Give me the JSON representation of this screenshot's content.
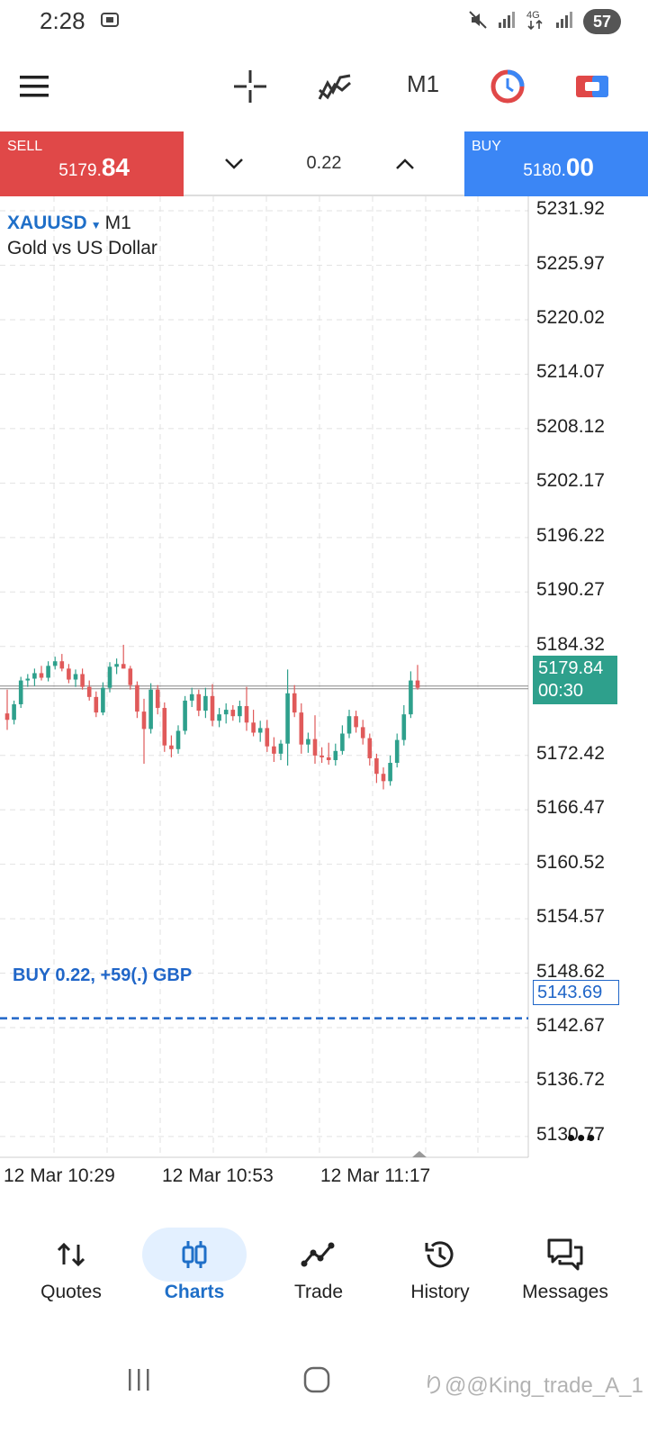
{
  "status_bar": {
    "time": "2:28",
    "battery": "57"
  },
  "toolbar": {
    "menu_icon": "hamburger-icon",
    "crosshair_icon": "crosshair-icon",
    "indicators_icon": "indicators-icon",
    "timeframe": "M1",
    "clock_icon": "one-click-trading-icon",
    "toggle_icon": "trade-toggle-icon"
  },
  "trade": {
    "sell_label": "SELL",
    "sell_price_main": "5179.",
    "sell_price_big": "84",
    "buy_label": "BUY",
    "buy_price_main": "5180.",
    "buy_price_big": "00",
    "volume": "0.22",
    "sell_color": "#e04848",
    "buy_color": "#3b86f5"
  },
  "chart": {
    "symbol": "XAUUSD",
    "timeframe": "M1",
    "description": "Gold vs US Dollar",
    "current_price": "5179.84",
    "countdown": "00:30",
    "position_text": "BUY 0.22,   +59(.) GBP",
    "position_price": "5143.69",
    "bull_color": "#2ea08c",
    "bear_color": "#e05a5a"
  },
  "chart_data": {
    "type": "candlestick",
    "y_ticks": [
      "5231.92",
      "5225.97",
      "5220.02",
      "5214.07",
      "5208.12",
      "5202.17",
      "5196.22",
      "5190.27",
      "5184.32",
      "5172.42",
      "5166.47",
      "5160.52",
      "5154.57",
      "5148.62",
      "5142.67",
      "5136.72",
      "5130.77"
    ],
    "x_ticks": [
      "12 Mar 10:29",
      "12 Mar 10:53",
      "12 Mar 11:17"
    ],
    "ylim": [
      5128.5,
      5233.5
    ],
    "bid_line": 5179.84,
    "position_line": 5143.69,
    "candles": [
      [
        5177.0,
        5179.6,
        5175.2,
        5176.3
      ],
      [
        5176.3,
        5178.4,
        5175.8,
        5178.0
      ],
      [
        5178.0,
        5181.0,
        5177.6,
        5180.6
      ],
      [
        5180.6,
        5181.3,
        5179.9,
        5180.8
      ],
      [
        5180.8,
        5181.9,
        5180.0,
        5181.4
      ],
      [
        5181.4,
        5182.2,
        5180.6,
        5180.9
      ],
      [
        5180.9,
        5182.7,
        5180.5,
        5182.2
      ],
      [
        5182.2,
        5183.2,
        5181.8,
        5182.7
      ],
      [
        5182.7,
        5183.5,
        5181.6,
        5181.9
      ],
      [
        5181.9,
        5182.4,
        5180.3,
        5180.7
      ],
      [
        5180.7,
        5181.8,
        5179.9,
        5181.3
      ],
      [
        5181.3,
        5181.9,
        5179.6,
        5179.9
      ],
      [
        5179.9,
        5180.6,
        5178.4,
        5178.8
      ],
      [
        5178.8,
        5179.4,
        5176.6,
        5177.1
      ],
      [
        5177.1,
        5180.4,
        5176.8,
        5179.8
      ],
      [
        5179.8,
        5182.6,
        5179.3,
        5182.1
      ],
      [
        5182.1,
        5183.0,
        5181.3,
        5182.4
      ],
      [
        5182.4,
        5184.5,
        5181.9,
        5181.9
      ],
      [
        5181.9,
        5182.2,
        5179.6,
        5180.1
      ],
      [
        5180.1,
        5180.5,
        5176.5,
        5177.2
      ],
      [
        5177.2,
        5178.6,
        5171.5,
        5175.3
      ],
      [
        5175.3,
        5180.3,
        5174.8,
        5179.6
      ],
      [
        5179.6,
        5180.1,
        5176.9,
        5177.6
      ],
      [
        5177.6,
        5178.2,
        5172.8,
        5173.5
      ],
      [
        5173.5,
        5174.6,
        5172.2,
        5173.1
      ],
      [
        5173.1,
        5175.7,
        5172.6,
        5175.1
      ],
      [
        5175.1,
        5178.9,
        5174.7,
        5178.4
      ],
      [
        5178.4,
        5179.8,
        5177.7,
        5179.1
      ],
      [
        5179.1,
        5179.6,
        5176.7,
        5177.3
      ],
      [
        5177.3,
        5179.8,
        5176.5,
        5178.9
      ],
      [
        5178.9,
        5180.2,
        5175.6,
        5176.2
      ],
      [
        5176.2,
        5177.6,
        5175.5,
        5176.9
      ],
      [
        5176.9,
        5178.1,
        5175.9,
        5177.4
      ],
      [
        5177.4,
        5177.9,
        5176.2,
        5176.7
      ],
      [
        5176.7,
        5178.4,
        5176.0,
        5177.8
      ],
      [
        5177.8,
        5179.9,
        5175.1,
        5176.0
      ],
      [
        5176.0,
        5177.4,
        5174.5,
        5174.9
      ],
      [
        5174.9,
        5176.2,
        5173.9,
        5175.4
      ],
      [
        5175.4,
        5176.3,
        5172.8,
        5173.4
      ],
      [
        5173.4,
        5174.4,
        5171.7,
        5172.6
      ],
      [
        5172.6,
        5174.1,
        5171.9,
        5173.7
      ],
      [
        5173.7,
        5181.8,
        5171.3,
        5179.2
      ],
      [
        5179.2,
        5180.1,
        5176.6,
        5177.1
      ],
      [
        5177.1,
        5178.1,
        5172.6,
        5173.6
      ],
      [
        5173.6,
        5174.9,
        5172.7,
        5174.2
      ],
      [
        5174.2,
        5176.8,
        5171.5,
        5172.4
      ],
      [
        5172.4,
        5173.3,
        5171.6,
        5172.2
      ],
      [
        5172.2,
        5173.8,
        5171.4,
        5171.9
      ],
      [
        5171.9,
        5173.7,
        5171.3,
        5172.9
      ],
      [
        5172.9,
        5175.7,
        5172.5,
        5174.8
      ],
      [
        5174.8,
        5177.4,
        5174.3,
        5176.7
      ],
      [
        5176.7,
        5177.3,
        5174.9,
        5175.5
      ],
      [
        5175.5,
        5176.3,
        5173.6,
        5174.3
      ],
      [
        5174.3,
        5174.8,
        5171.3,
        5172.1
      ],
      [
        5172.1,
        5172.6,
        5169.4,
        5170.4
      ],
      [
        5170.4,
        5171.1,
        5168.7,
        5169.6
      ],
      [
        5169.6,
        5172.4,
        5169.1,
        5171.6
      ],
      [
        5171.6,
        5174.8,
        5171.1,
        5174.1
      ],
      [
        5174.1,
        5177.9,
        5173.5,
        5176.9
      ],
      [
        5176.9,
        5181.6,
        5176.5,
        5180.6
      ],
      [
        5180.6,
        5182.3,
        5179.6,
        5179.8
      ]
    ]
  },
  "nav": {
    "items": [
      {
        "label": "Quotes",
        "icon": "quotes-icon"
      },
      {
        "label": "Charts",
        "icon": "charts-icon"
      },
      {
        "label": "Trade",
        "icon": "trade-icon"
      },
      {
        "label": "History",
        "icon": "history-icon"
      },
      {
        "label": "Messages",
        "icon": "messages-icon"
      }
    ],
    "active": "Charts"
  },
  "watermark": "り@@King_trade_A_1"
}
